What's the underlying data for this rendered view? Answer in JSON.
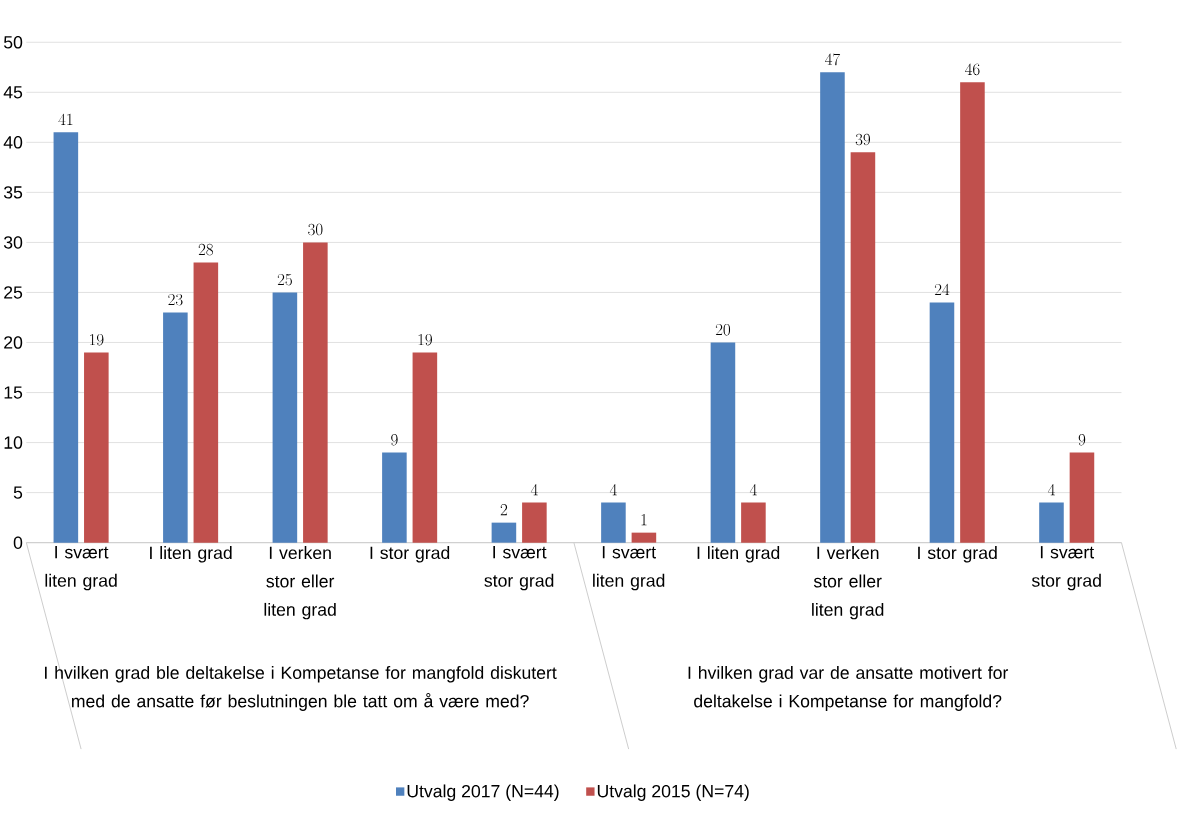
{
  "chart_data": {
    "type": "bar",
    "categories": [
      "I svært liten grad",
      "I liten grad",
      "I verken stor eller liten grad",
      "I stor grad",
      "I svært stor grad",
      "I svært liten grad",
      "I liten grad",
      "I verken stor eller liten grad",
      "I stor grad",
      "I svært stor grad"
    ],
    "series": [
      {
        "name": "Utvalg 2017 (N=44)",
        "color": "#4f81bd",
        "values": [
          41,
          23,
          25,
          9,
          2,
          4,
          20,
          47,
          24,
          4
        ]
      },
      {
        "name": "Utvalg 2015 (N=74)",
        "color": "#c0504d",
        "values": [
          19,
          28,
          30,
          19,
          4,
          1,
          4,
          39,
          46,
          9
        ]
      }
    ],
    "annotations": [
      "I hvilken grad ble deltakelse i Kompetanse for mangfold diskutert med de ansatte før beslutningen ble tatt om å være med?",
      "I hvilken grad var de ansatte motivert for deltakelse i Kompetanse for mangfold?"
    ],
    "ylim": [
      0,
      50
    ],
    "yticks": [
      0,
      5,
      10,
      15,
      20,
      25,
      30,
      35,
      40,
      45,
      50
    ],
    "grid": "y",
    "legend": "bottom",
    "data_labels": true
  }
}
